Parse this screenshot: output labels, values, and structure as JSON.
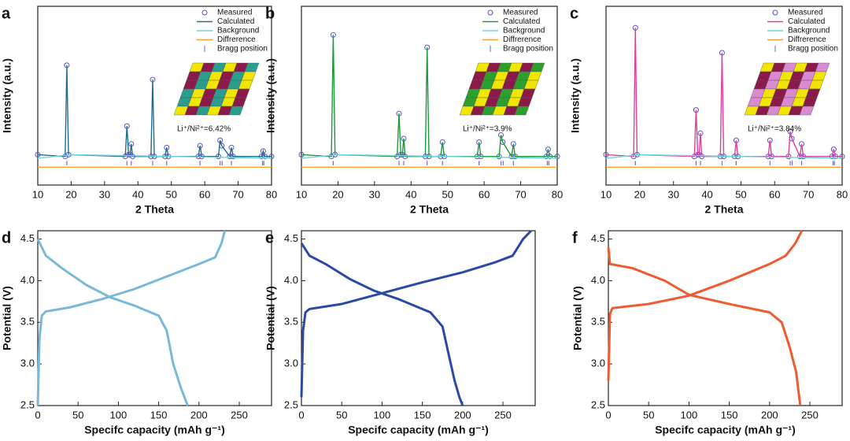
{
  "chart_data": [
    {
      "type": "line",
      "label": "a",
      "xlabel": "2 Theta",
      "ylabel": "Intensity (a.u.)",
      "annotation": "Li⁺/Ni²⁺=6.42%",
      "xlim": [
        10,
        80
      ],
      "xticks": [
        10,
        20,
        30,
        40,
        50,
        60,
        70,
        80
      ],
      "ylim": [
        0,
        100
      ],
      "series": [
        {
          "name": "Measured",
          "color": "#5a4fcf",
          "marker": "circle",
          "x": [
            10,
            18.2,
            18.7,
            19.2,
            36.2,
            36.7,
            37.2,
            37.6,
            38,
            38.4,
            43.9,
            44.4,
            44.9,
            48.1,
            48.6,
            49.1,
            58.1,
            58.6,
            59.1,
            64.1,
            64.6,
            65.1,
            67.5,
            68,
            68.5,
            77,
            77.5,
            78,
            80
          ],
          "values": [
            17,
            16,
            67,
            17,
            16,
            33,
            17,
            17,
            23,
            16,
            16,
            59,
            16,
            16,
            21,
            16,
            16,
            22,
            16,
            16,
            25,
            22,
            16,
            21,
            16,
            16,
            19,
            16,
            16
          ]
        },
        {
          "name": "Calculated",
          "color": "#1f6e8c",
          "marker": "line",
          "x": [
            10,
            18.2,
            18.7,
            19.2,
            36.2,
            36.7,
            37.2,
            37.6,
            38,
            38.4,
            43.9,
            44.4,
            44.9,
            48.1,
            48.6,
            49.1,
            58.1,
            58.6,
            59.1,
            64.1,
            64.6,
            65.1,
            67.5,
            68,
            68.5,
            77,
            77.5,
            78,
            80
          ],
          "values": [
            17,
            16,
            67,
            17,
            16,
            33,
            17,
            17,
            23,
            16,
            16,
            59,
            16,
            16,
            21,
            16,
            16,
            22,
            16,
            16,
            25,
            22,
            16,
            21,
            16,
            16,
            19,
            16,
            16
          ]
        },
        {
          "name": "Background",
          "color": "#6fd3e0",
          "marker": "line",
          "x": [
            10,
            20,
            80
          ],
          "values": [
            15,
            17,
            15
          ]
        },
        {
          "name": "Diffrerence",
          "color": "#f5a030",
          "marker": "line",
          "x": [
            10,
            80
          ],
          "values": [
            10,
            10
          ]
        },
        {
          "name": "Bragg position",
          "color": "#7a60d0",
          "marker": "tick",
          "x": [
            18.7,
            36.7,
            38,
            44.4,
            48.6,
            58.6,
            64.6,
            65.2,
            68,
            77.3,
            77.7
          ]
        }
      ]
    },
    {
      "type": "line",
      "label": "b",
      "xlabel": "2 Theta",
      "ylabel": "Intensity (a.u.)",
      "annotation": "Li⁺/Ni²⁺=3.9%",
      "xlim": [
        10,
        80
      ],
      "xticks": [
        10,
        20,
        30,
        40,
        50,
        60,
        70,
        80
      ],
      "ylim": [
        0,
        100
      ],
      "series": [
        {
          "name": "Measured",
          "color": "#5a4fcf",
          "marker": "circle",
          "x": [
            10,
            18.2,
            18.7,
            19.2,
            36.2,
            36.7,
            37.2,
            37.6,
            38,
            38.4,
            43.9,
            44.4,
            44.9,
            48.1,
            48.6,
            49.1,
            58.1,
            58.6,
            59.1,
            64.1,
            64.6,
            65.1,
            67.5,
            68,
            68.5,
            77,
            77.5,
            78,
            80
          ],
          "values": [
            17,
            16,
            84,
            17,
            16,
            40,
            17,
            17,
            26,
            16,
            16,
            77,
            16,
            16,
            24,
            16,
            16,
            24,
            16,
            16,
            28,
            24,
            16,
            23,
            16,
            16,
            20,
            16,
            16
          ]
        },
        {
          "name": "Calculated",
          "color": "#1a9a3a",
          "marker": "line",
          "x": [
            10,
            18.2,
            18.7,
            19.2,
            36.2,
            36.7,
            37.2,
            37.6,
            38,
            38.4,
            43.9,
            44.4,
            44.9,
            48.1,
            48.6,
            49.1,
            58.1,
            58.6,
            59.1,
            64.1,
            64.6,
            65.1,
            67.5,
            68,
            68.5,
            77,
            77.5,
            78,
            80
          ],
          "values": [
            17,
            16,
            84,
            17,
            16,
            40,
            17,
            17,
            26,
            16,
            16,
            77,
            16,
            16,
            24,
            16,
            16,
            24,
            16,
            16,
            28,
            24,
            16,
            23,
            16,
            16,
            20,
            16,
            16
          ]
        },
        {
          "name": "Background",
          "color": "#6fd3e0",
          "marker": "line",
          "x": [
            10,
            20,
            80
          ],
          "values": [
            15,
            17,
            15
          ]
        },
        {
          "name": "Diffrerence",
          "color": "#f5a030",
          "marker": "line",
          "x": [
            10,
            80
          ],
          "values": [
            10,
            10
          ]
        },
        {
          "name": "Bragg position",
          "color": "#7a60d0",
          "marker": "tick",
          "x": [
            18.7,
            36.7,
            38,
            44.4,
            48.6,
            58.6,
            64.6,
            65.2,
            68,
            77.3,
            77.7
          ]
        }
      ]
    },
    {
      "type": "line",
      "label": "c",
      "xlabel": "2 Theta",
      "ylabel": "Intensity (a.u.)",
      "annotation": "Li⁺/Ni²⁺=3.84%",
      "xlim": [
        10,
        80
      ],
      "xticks": [
        10,
        20,
        30,
        40,
        50,
        60,
        70,
        80
      ],
      "ylim": [
        0,
        100
      ],
      "series": [
        {
          "name": "Measured",
          "color": "#5a4fcf",
          "marker": "circle",
          "x": [
            10,
            18.2,
            18.7,
            19.2,
            36.2,
            36.7,
            37.2,
            37.6,
            38,
            38.4,
            43.9,
            44.4,
            44.9,
            48.1,
            48.6,
            49.1,
            58.1,
            58.6,
            59.1,
            64.1,
            64.6,
            65.1,
            67.5,
            68,
            68.5,
            77,
            77.5,
            78,
            80
          ],
          "values": [
            17,
            16,
            88,
            17,
            16,
            42,
            17,
            17,
            29,
            16,
            16,
            74,
            16,
            16,
            25,
            16,
            16,
            25,
            16,
            16,
            30,
            26,
            16,
            23,
            16,
            16,
            20,
            16,
            16
          ]
        },
        {
          "name": "Calculated",
          "color": "#e0409a",
          "marker": "line",
          "x": [
            10,
            18.2,
            18.7,
            19.2,
            36.2,
            36.7,
            37.2,
            37.6,
            38,
            38.4,
            43.9,
            44.4,
            44.9,
            48.1,
            48.6,
            49.1,
            58.1,
            58.6,
            59.1,
            64.1,
            64.6,
            65.1,
            67.5,
            68,
            68.5,
            77,
            77.5,
            78,
            80
          ],
          "values": [
            17,
            16,
            88,
            17,
            16,
            42,
            17,
            17,
            29,
            16,
            16,
            74,
            16,
            16,
            25,
            16,
            16,
            25,
            16,
            16,
            30,
            26,
            16,
            23,
            16,
            16,
            20,
            16,
            16
          ]
        },
        {
          "name": "Background",
          "color": "#6fd3e0",
          "marker": "line",
          "x": [
            10,
            20,
            80
          ],
          "values": [
            15,
            17,
            15
          ]
        },
        {
          "name": "Diffrerence",
          "color": "#f5a030",
          "marker": "line",
          "x": [
            10,
            80
          ],
          "values": [
            10,
            10
          ]
        },
        {
          "name": "Bragg position",
          "color": "#7a60d0",
          "marker": "tick",
          "x": [
            18.7,
            36.7,
            38,
            44.4,
            48.6,
            58.6,
            64.6,
            65.2,
            68,
            77.3,
            77.7
          ]
        }
      ]
    },
    {
      "type": "line",
      "label": "d",
      "xlabel": "Specifc capacity (mAh g⁻¹)",
      "ylabel": "Potential (V)",
      "xlim": [
        0,
        290
      ],
      "xticks": [
        0,
        50,
        100,
        150,
        200,
        250
      ],
      "ylim": [
        2.5,
        4.6
      ],
      "yticks": [
        2.5,
        {
          "value": 3,
          "label": "3.0"
        },
        3.5,
        {
          "value": 4,
          "label": "4.0"
        },
        4.5
      ],
      "series": [
        {
          "color": "#7ab8d8",
          "x": [
            0,
            2,
            5,
            10,
            40,
            80,
            120,
            160,
            200,
            220,
            228,
            232
          ],
          "values": [
            2.5,
            3.3,
            3.58,
            3.63,
            3.68,
            3.78,
            3.9,
            4.05,
            4.2,
            4.28,
            4.45,
            4.6
          ]
        },
        {
          "color": "#7ab8d8",
          "x": [
            0,
            10,
            30,
            60,
            90,
            120,
            150,
            160,
            168,
            178,
            186
          ],
          "values": [
            4.5,
            4.3,
            4.15,
            3.95,
            3.8,
            3.7,
            3.58,
            3.4,
            3.0,
            2.7,
            2.5
          ]
        }
      ]
    },
    {
      "type": "line",
      "label": "e",
      "xlabel": "Specifc capacity (mAh g⁻¹)",
      "ylabel": "Potential (V)",
      "xlim": [
        0,
        290
      ],
      "xticks": [
        0,
        50,
        100,
        150,
        200,
        250
      ],
      "ylim": [
        2.5,
        4.6
      ],
      "yticks": [
        2.5,
        {
          "value": 3,
          "label": "3.0"
        },
        3.5,
        {
          "value": 4,
          "label": "4.0"
        },
        4.5
      ],
      "series": [
        {
          "color": "#2b4aa8",
          "x": [
            0,
            2,
            5,
            10,
            50,
            100,
            150,
            200,
            240,
            262,
            275,
            285
          ],
          "values": [
            2.6,
            3.4,
            3.62,
            3.66,
            3.72,
            3.85,
            3.98,
            4.1,
            4.22,
            4.3,
            4.5,
            4.6
          ]
        },
        {
          "color": "#2b4aa8",
          "x": [
            0,
            10,
            30,
            60,
            90,
            120,
            160,
            175,
            183,
            190,
            196,
            200
          ],
          "values": [
            4.45,
            4.3,
            4.2,
            4.02,
            3.88,
            3.78,
            3.62,
            3.45,
            3.1,
            2.8,
            2.6,
            2.5
          ]
        }
      ]
    },
    {
      "type": "line",
      "label": "f",
      "xlabel": "Specifc capacity (mAh g⁻¹)",
      "ylabel": "Potential (V)",
      "xlim": [
        0,
        290
      ],
      "xticks": [
        0,
        50,
        100,
        150,
        200,
        250
      ],
      "ylim": [
        2.5,
        4.6
      ],
      "yticks": [
        2.5,
        {
          "value": 3,
          "label": "3.0"
        },
        3.5,
        {
          "value": 4,
          "label": "4.0"
        },
        4.5
      ],
      "series": [
        {
          "color": "#f05a30",
          "x": [
            0,
            2,
            5,
            50,
            100,
            150,
            200,
            220,
            232,
            240
          ],
          "values": [
            2.8,
            3.6,
            3.67,
            3.72,
            3.82,
            4.0,
            4.2,
            4.3,
            4.45,
            4.6
          ]
        },
        {
          "color": "#f05a30",
          "x": [
            0,
            2,
            30,
            70,
            100,
            150,
            200,
            215,
            225,
            233,
            238
          ],
          "values": [
            4.4,
            4.2,
            4.15,
            4.0,
            3.83,
            3.72,
            3.62,
            3.5,
            3.2,
            2.9,
            2.5
          ]
        }
      ]
    }
  ]
}
